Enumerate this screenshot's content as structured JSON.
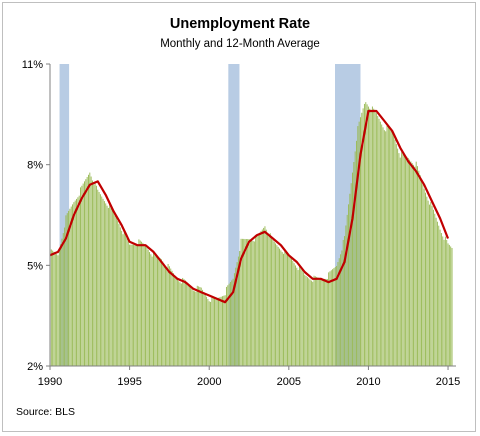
{
  "chart_data": {
    "type": "bar",
    "title": "Unemployment Rate",
    "subtitle": "Monthly and 12-Month Average",
    "source": "Source: BLS",
    "xlabel": "",
    "ylabel": "",
    "xlim": [
      1990,
      2015.5
    ],
    "ylim": [
      2,
      11
    ],
    "y_ticks": [
      2,
      5,
      8,
      11
    ],
    "y_tick_labels": [
      "2%",
      "5%",
      "8%",
      "11%"
    ],
    "x_ticks": [
      1990,
      1995,
      2000,
      2005,
      2010,
      2015
    ],
    "x_tick_labels": [
      "1990",
      "1995",
      "2000",
      "2005",
      "2010",
      "2015"
    ],
    "recessions": [
      [
        1990.6,
        1991.2
      ],
      [
        2001.2,
        2001.9
      ],
      [
        2007.9,
        2009.5
      ]
    ],
    "monthly_series": {
      "name": "Monthly",
      "color": "#9bbb59",
      "points": [
        [
          1990.0,
          5.4
        ],
        [
          1990.5,
          5.3
        ],
        [
          1991.0,
          6.4
        ],
        [
          1991.5,
          6.9
        ],
        [
          1992.0,
          7.3
        ],
        [
          1992.5,
          7.8
        ],
        [
          1993.0,
          7.2
        ],
        [
          1993.5,
          6.9
        ],
        [
          1994.0,
          6.6
        ],
        [
          1994.5,
          6.1
        ],
        [
          1995.0,
          5.6
        ],
        [
          1995.5,
          5.7
        ],
        [
          1996.0,
          5.6
        ],
        [
          1996.5,
          5.3
        ],
        [
          1997.0,
          5.2
        ],
        [
          1997.5,
          4.9
        ],
        [
          1998.0,
          4.6
        ],
        [
          1998.5,
          4.5
        ],
        [
          1999.0,
          4.3
        ],
        [
          1999.5,
          4.3
        ],
        [
          2000.0,
          4.0
        ],
        [
          2000.5,
          4.0
        ],
        [
          2001.0,
          4.2
        ],
        [
          2001.5,
          4.6
        ],
        [
          2002.0,
          5.7
        ],
        [
          2002.5,
          5.8
        ],
        [
          2003.0,
          5.8
        ],
        [
          2003.5,
          6.2
        ],
        [
          2004.0,
          5.7
        ],
        [
          2004.5,
          5.5
        ],
        [
          2005.0,
          5.3
        ],
        [
          2005.5,
          5.0
        ],
        [
          2006.0,
          4.7
        ],
        [
          2006.5,
          4.6
        ],
        [
          2007.0,
          4.6
        ],
        [
          2007.5,
          4.7
        ],
        [
          2008.0,
          5.0
        ],
        [
          2008.5,
          5.8
        ],
        [
          2009.0,
          7.8
        ],
        [
          2009.3,
          9.0
        ],
        [
          2009.8,
          9.9
        ],
        [
          2010.5,
          9.5
        ],
        [
          2011.0,
          9.1
        ],
        [
          2011.5,
          9.0
        ],
        [
          2012.0,
          8.3
        ],
        [
          2012.5,
          8.2
        ],
        [
          2013.0,
          8.0
        ],
        [
          2013.5,
          7.3
        ],
        [
          2014.0,
          6.7
        ],
        [
          2014.5,
          6.1
        ],
        [
          2015.0,
          5.6
        ],
        [
          2015.3,
          5.5
        ]
      ]
    },
    "average_series": {
      "name": "12-Month Average",
      "color": "#c00000",
      "points": [
        [
          1990.0,
          5.3
        ],
        [
          1990.5,
          5.4
        ],
        [
          1991.0,
          5.8
        ],
        [
          1991.5,
          6.5
        ],
        [
          1992.0,
          7.0
        ],
        [
          1992.5,
          7.4
        ],
        [
          1993.0,
          7.5
        ],
        [
          1993.5,
          7.1
        ],
        [
          1994.0,
          6.6
        ],
        [
          1994.5,
          6.2
        ],
        [
          1995.0,
          5.7
        ],
        [
          1995.5,
          5.6
        ],
        [
          1996.0,
          5.6
        ],
        [
          1996.5,
          5.4
        ],
        [
          1997.0,
          5.1
        ],
        [
          1997.5,
          4.8
        ],
        [
          1998.0,
          4.6
        ],
        [
          1998.5,
          4.5
        ],
        [
          1999.0,
          4.3
        ],
        [
          1999.5,
          4.2
        ],
        [
          2000.0,
          4.1
        ],
        [
          2000.5,
          4.0
        ],
        [
          2001.0,
          3.9
        ],
        [
          2001.5,
          4.2
        ],
        [
          2002.0,
          5.2
        ],
        [
          2002.5,
          5.7
        ],
        [
          2003.0,
          5.9
        ],
        [
          2003.5,
          6.0
        ],
        [
          2004.0,
          5.8
        ],
        [
          2004.5,
          5.6
        ],
        [
          2005.0,
          5.3
        ],
        [
          2005.5,
          5.1
        ],
        [
          2006.0,
          4.8
        ],
        [
          2006.5,
          4.6
        ],
        [
          2007.0,
          4.6
        ],
        [
          2007.5,
          4.5
        ],
        [
          2008.0,
          4.6
        ],
        [
          2008.5,
          5.1
        ],
        [
          2009.0,
          6.4
        ],
        [
          2009.5,
          8.3
        ],
        [
          2010.0,
          9.6
        ],
        [
          2010.5,
          9.6
        ],
        [
          2011.0,
          9.3
        ],
        [
          2011.5,
          9.0
        ],
        [
          2012.0,
          8.5
        ],
        [
          2012.5,
          8.1
        ],
        [
          2013.0,
          7.8
        ],
        [
          2013.5,
          7.4
        ],
        [
          2014.0,
          6.9
        ],
        [
          2014.5,
          6.4
        ],
        [
          2015.0,
          5.8
        ]
      ]
    },
    "grid": false,
    "legend": "none"
  }
}
